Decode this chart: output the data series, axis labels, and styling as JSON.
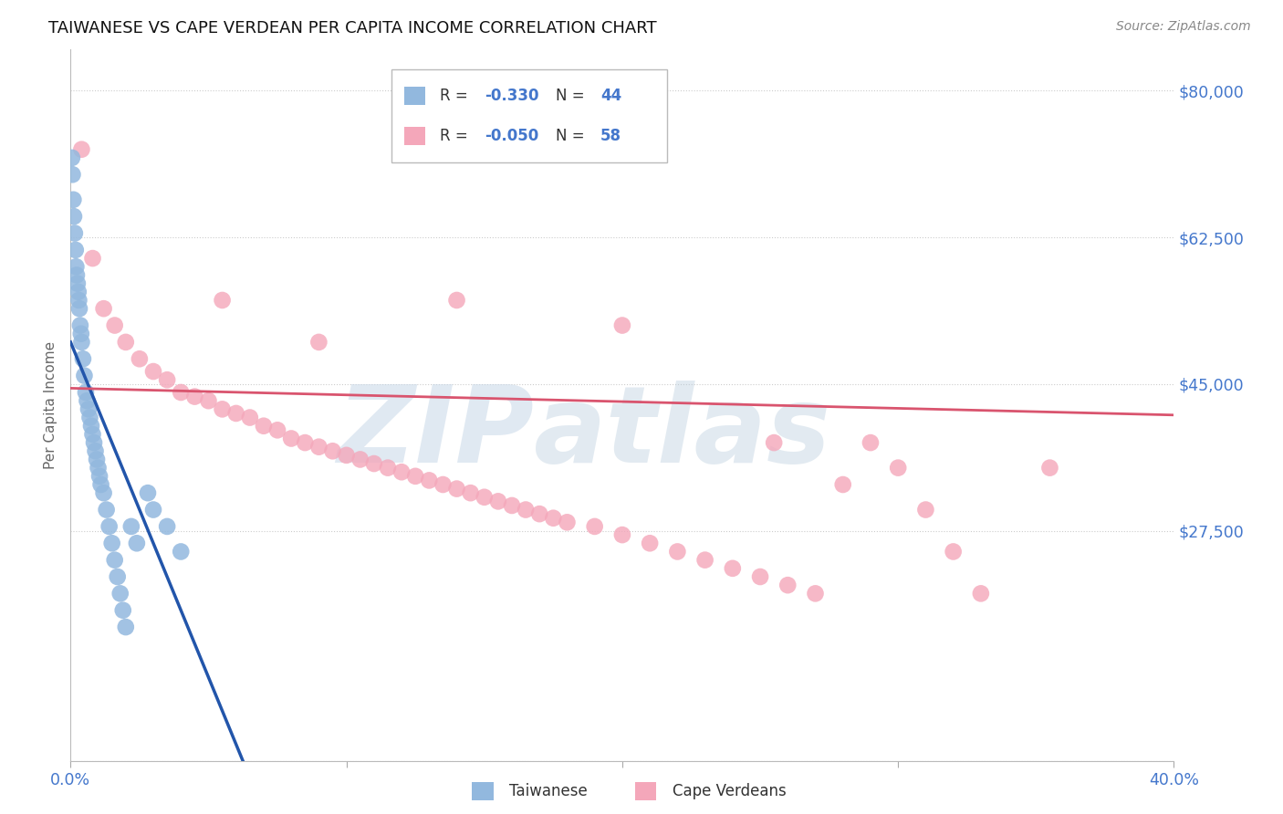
{
  "title": "TAIWANESE VS CAPE VERDEAN PER CAPITA INCOME CORRELATION CHART",
  "source": "Source: ZipAtlas.com",
  "ylabel": "Per Capita Income",
  "xlim_min": 0.0,
  "xlim_max": 40.0,
  "ylim_min": 0,
  "ylim_max": 85000,
  "ytick_vals": [
    0,
    27500,
    45000,
    62500,
    80000
  ],
  "ytick_labels": [
    "",
    "$27,500",
    "$45,000",
    "$62,500",
    "$80,000"
  ],
  "xtick_vals": [
    0,
    10,
    20,
    30,
    40
  ],
  "xtick_labels": [
    "0.0%",
    "",
    "",
    "",
    "40.0%"
  ],
  "watermark_zip": "ZIP",
  "watermark_atlas": "atlas",
  "legend_r1": "-0.330",
  "legend_n1": "44",
  "legend_r2": "-0.050",
  "legend_n2": "58",
  "blue_color": "#92B8DE",
  "pink_color": "#F4A7BA",
  "blue_line_color": "#2255AA",
  "pink_line_color": "#D9546E",
  "axis_label_color": "#4477CC",
  "label_r": "R = ",
  "label_n": "N = ",
  "label_taiwanese": "Taiwanese",
  "label_capeverdean": "Cape Verdeans",
  "tw_x": [
    0.05,
    0.07,
    0.1,
    0.12,
    0.15,
    0.18,
    0.2,
    0.22,
    0.25,
    0.28,
    0.3,
    0.32,
    0.35,
    0.38,
    0.4,
    0.45,
    0.5,
    0.55,
    0.6,
    0.65,
    0.7,
    0.75,
    0.8,
    0.85,
    0.9,
    0.95,
    1.0,
    1.05,
    1.1,
    1.2,
    1.3,
    1.4,
    1.5,
    1.6,
    1.7,
    1.8,
    1.9,
    2.0,
    2.2,
    2.4,
    2.8,
    3.0,
    3.5,
    4.0
  ],
  "tw_y": [
    72000,
    70000,
    67000,
    65000,
    63000,
    61000,
    59000,
    58000,
    57000,
    56000,
    55000,
    54000,
    52000,
    51000,
    50000,
    48000,
    46000,
    44000,
    43000,
    42000,
    41000,
    40000,
    39000,
    38000,
    37000,
    36000,
    35000,
    34000,
    33000,
    32000,
    30000,
    28000,
    26000,
    24000,
    22000,
    20000,
    18000,
    16000,
    28000,
    26000,
    32000,
    30000,
    28000,
    25000
  ],
  "cv_x": [
    0.4,
    0.8,
    1.2,
    1.6,
    2.0,
    2.5,
    3.0,
    3.5,
    4.0,
    4.5,
    5.0,
    5.5,
    6.0,
    6.5,
    7.0,
    7.5,
    8.0,
    8.5,
    9.0,
    9.5,
    10.0,
    10.5,
    11.0,
    11.5,
    12.0,
    12.5,
    13.0,
    13.5,
    14.0,
    14.5,
    15.0,
    15.5,
    16.0,
    16.5,
    17.0,
    17.5,
    18.0,
    19.0,
    20.0,
    21.0,
    22.0,
    23.0,
    24.0,
    25.0,
    26.0,
    27.0,
    28.0,
    29.0,
    30.0,
    31.0,
    32.0,
    5.5,
    9.0,
    14.0,
    20.0,
    25.5,
    33.0,
    35.5
  ],
  "cv_y": [
    73000,
    60000,
    54000,
    52000,
    50000,
    48000,
    46500,
    45500,
    44000,
    43500,
    43000,
    42000,
    41500,
    41000,
    40000,
    39500,
    38500,
    38000,
    37500,
    37000,
    36500,
    36000,
    35500,
    35000,
    34500,
    34000,
    33500,
    33000,
    32500,
    32000,
    31500,
    31000,
    30500,
    30000,
    29500,
    29000,
    28500,
    28000,
    27000,
    26000,
    25000,
    24000,
    23000,
    22000,
    21000,
    20000,
    33000,
    38000,
    35000,
    30000,
    25000,
    55000,
    50000,
    55000,
    52000,
    38000,
    20000,
    35000
  ]
}
